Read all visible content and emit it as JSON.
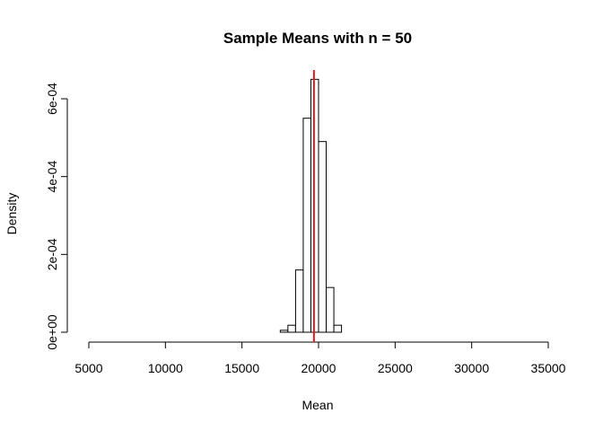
{
  "chart_data": {
    "type": "histogram",
    "title": "Sample Means with n =  50",
    "xlabel": "Mean",
    "ylabel": "Density",
    "xlim": [
      5000,
      35000
    ],
    "ylim": [
      0,
      0.00065
    ],
    "x_ticks": [
      5000,
      10000,
      15000,
      20000,
      25000,
      30000,
      35000
    ],
    "x_tick_labels": [
      "5000",
      "10000",
      "15000",
      "20000",
      "25000",
      "30000",
      "35000"
    ],
    "y_ticks": [
      0,
      0.0002,
      0.0004,
      0.0006
    ],
    "y_tick_labels": [
      "0e+00",
      "2e-04",
      "4e-04",
      "6e-04"
    ],
    "bins": [
      {
        "x0": 17500,
        "x1": 18000,
        "density": 5e-06
      },
      {
        "x0": 18000,
        "x1": 18500,
        "density": 1.8e-05
      },
      {
        "x0": 18500,
        "x1": 19000,
        "density": 0.00016
      },
      {
        "x0": 19000,
        "x1": 19500,
        "density": 0.00055
      },
      {
        "x0": 19500,
        "x1": 20000,
        "density": 0.00065
      },
      {
        "x0": 20000,
        "x1": 20500,
        "density": 0.00049
      },
      {
        "x0": 20500,
        "x1": 21000,
        "density": 0.000115
      },
      {
        "x0": 21000,
        "x1": 21500,
        "density": 1.8e-05
      }
    ],
    "mean_line": {
      "x": 19700,
      "color": "#e31a1c"
    }
  }
}
